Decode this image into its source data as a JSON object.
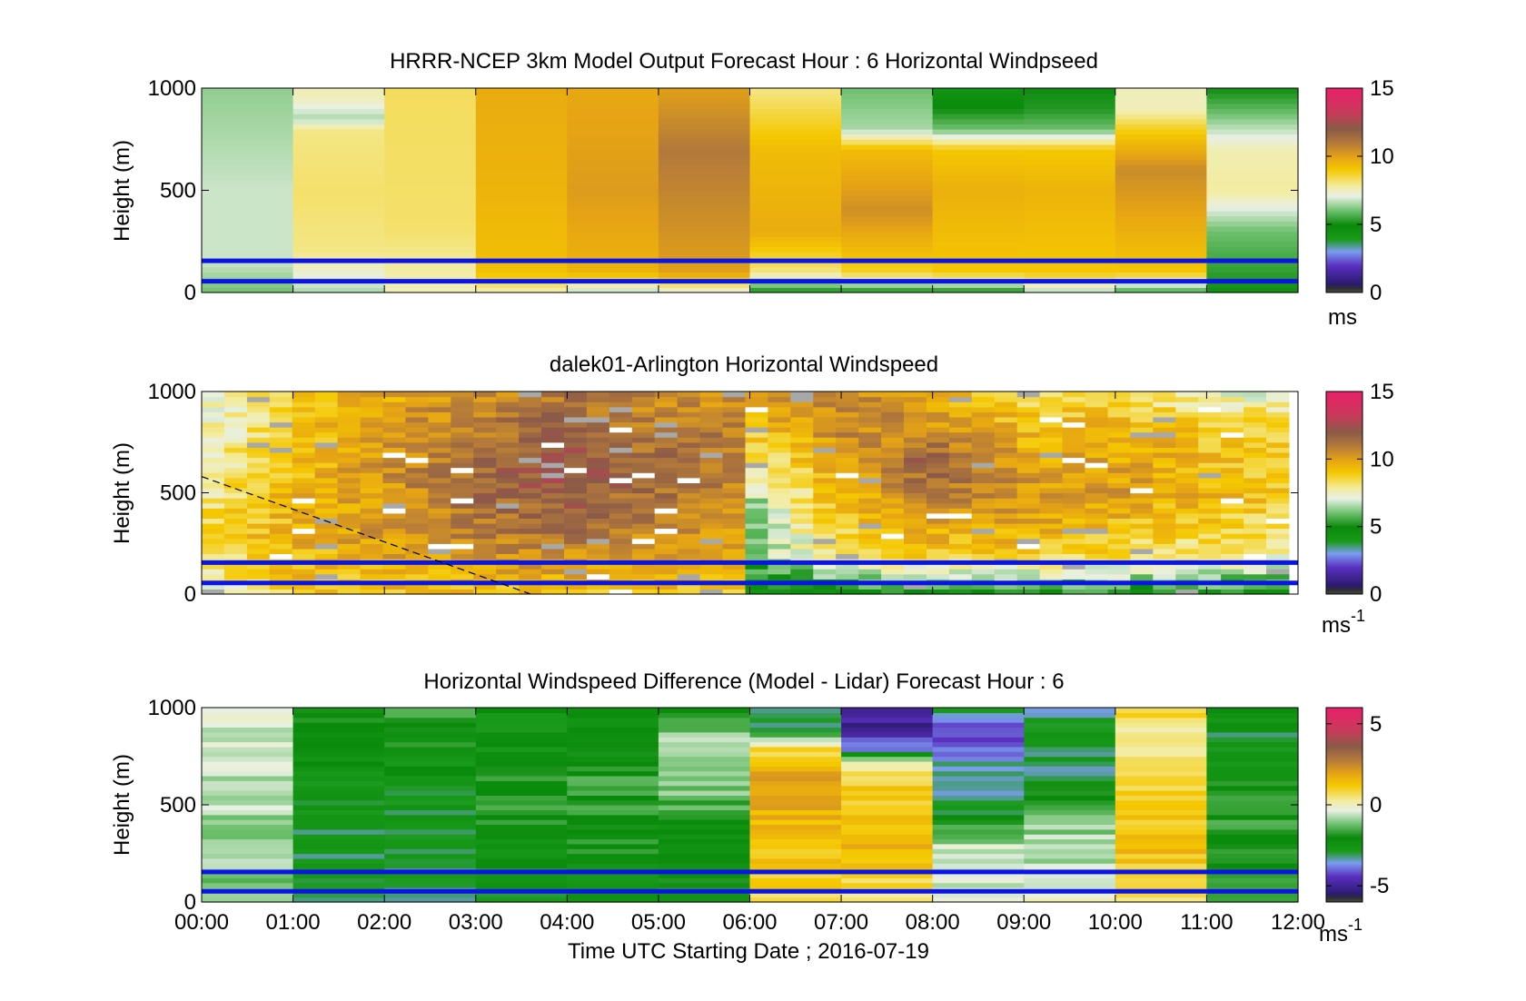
{
  "figure": {
    "xlabel": "Time UTC  Starting Date ; 2016-07-19",
    "x_ticks": [
      "00:00",
      "01:00",
      "02:00",
      "03:00",
      "04:00",
      "05:00",
      "06:00",
      "07:00",
      "08:00",
      "09:00",
      "10:00",
      "11:00",
      "12:00"
    ]
  },
  "chart_data": [
    {
      "type": "heatmap",
      "title": "HRRR-NCEP 3km Model Output   Forecast Hour : 6 Horizontal Windpseed",
      "ylabel": "Height (m)",
      "xlim": [
        0,
        12
      ],
      "ylim": [
        0,
        1000
      ],
      "y_ticks": [
        "0",
        "500",
        "1000"
      ],
      "colorbar": {
        "ticks": [
          "0",
          "5",
          "10",
          "15"
        ],
        "range": [
          0,
          15
        ],
        "unit": "ms"
      },
      "columns": [
        {
          "t": [
            0,
            1
          ],
          "speed_by_height": [
            [
              0,
              6
            ],
            [
              150,
              6.8
            ],
            [
              500,
              6.8
            ],
            [
              1000,
              6.3
            ]
          ]
        },
        {
          "t": [
            1,
            2
          ],
          "speed_by_height": [
            [
              0,
              6.5
            ],
            [
              200,
              8
            ],
            [
              500,
              8.2
            ],
            [
              800,
              8
            ],
            [
              850,
              6.5
            ],
            [
              950,
              7.5
            ],
            [
              1000,
              7.5
            ]
          ]
        },
        {
          "t": [
            2,
            3
          ],
          "speed_by_height": [
            [
              0,
              7.5
            ],
            [
              300,
              8.2
            ],
            [
              1000,
              8.3
            ]
          ]
        },
        {
          "t": [
            3,
            4
          ],
          "speed_by_height": [
            [
              0,
              7.5
            ],
            [
              100,
              9.2
            ],
            [
              500,
              9.5
            ],
            [
              1000,
              9.7
            ]
          ]
        },
        {
          "t": [
            4,
            5
          ],
          "speed_by_height": [
            [
              0,
              6.5
            ],
            [
              100,
              9.5
            ],
            [
              500,
              10.1
            ],
            [
              1000,
              9.8
            ]
          ]
        },
        {
          "t": [
            5,
            6
          ],
          "speed_by_height": [
            [
              0,
              7
            ],
            [
              100,
              10
            ],
            [
              700,
              11
            ],
            [
              1000,
              10
            ]
          ]
        },
        {
          "t": [
            6,
            7
          ],
          "speed_by_height": [
            [
              0,
              5
            ],
            [
              100,
              8
            ],
            [
              300,
              9.7
            ],
            [
              700,
              9.3
            ],
            [
              1000,
              8
            ]
          ]
        },
        {
          "t": [
            7,
            8
          ],
          "speed_by_height": [
            [
              0,
              5
            ],
            [
              100,
              8.7
            ],
            [
              400,
              10.4
            ],
            [
              700,
              9.3
            ],
            [
              800,
              6.5
            ],
            [
              1000,
              6
            ]
          ]
        },
        {
          "t": [
            8,
            9
          ],
          "speed_by_height": [
            [
              0,
              5
            ],
            [
              100,
              9
            ],
            [
              500,
              9.6
            ],
            [
              700,
              9
            ],
            [
              800,
              6
            ],
            [
              900,
              5
            ],
            [
              1000,
              4.3
            ]
          ]
        },
        {
          "t": [
            9,
            10
          ],
          "speed_by_height": [
            [
              0,
              6.5
            ],
            [
              100,
              9
            ],
            [
              500,
              9.5
            ],
            [
              700,
              9
            ],
            [
              800,
              6
            ],
            [
              900,
              5.2
            ],
            [
              1000,
              5
            ]
          ]
        },
        {
          "t": [
            10,
            11
          ],
          "speed_by_height": [
            [
              0,
              5.5
            ],
            [
              100,
              9
            ],
            [
              600,
              10.5
            ],
            [
              800,
              8.8
            ],
            [
              900,
              7.5
            ],
            [
              1000,
              7.5
            ]
          ]
        },
        {
          "t": [
            11,
            12
          ],
          "speed_by_height": [
            [
              0,
              5
            ],
            [
              300,
              6
            ],
            [
              500,
              7.8
            ],
            [
              700,
              7.6
            ],
            [
              900,
              5.8
            ],
            [
              1000,
              5
            ]
          ]
        }
      ],
      "reference_lines_height": [
        55,
        155
      ]
    },
    {
      "type": "heatmap",
      "title": "dalek01-Arlington  Horizontal Windspeed",
      "ylabel": "Height (m)",
      "xlim": [
        0,
        12
      ],
      "ylim": [
        0,
        1000
      ],
      "y_ticks": [
        "0",
        "500",
        "1000"
      ],
      "colorbar": {
        "ticks": [
          "0",
          "5",
          "10",
          "15"
        ],
        "range": [
          0,
          15
        ],
        "unit": "ms",
        "unit_exponent": "-1"
      },
      "speed_profiles": [
        {
          "t": 0,
          "speed_by_height": [
            [
              0,
              7
            ],
            [
              300,
              8.5
            ],
            [
              600,
              7.5
            ],
            [
              1000,
              7
            ]
          ]
        },
        {
          "t": 1,
          "speed_by_height": [
            [
              0,
              9
            ],
            [
              300,
              9.5
            ],
            [
              600,
              9.3
            ],
            [
              1000,
              8.7
            ]
          ]
        },
        {
          "t": 2,
          "speed_by_height": [
            [
              0,
              9
            ],
            [
              300,
              10.2
            ],
            [
              600,
              10.2
            ],
            [
              1000,
              9.7
            ]
          ]
        },
        {
          "t": 3,
          "speed_by_height": [
            [
              0,
              9
            ],
            [
              300,
              11
            ],
            [
              600,
              11.5
            ],
            [
              1000,
              10.5
            ]
          ]
        },
        {
          "t": 4,
          "speed_by_height": [
            [
              0,
              9
            ],
            [
              300,
              11.2
            ],
            [
              600,
              12.3
            ],
            [
              1000,
              11
            ]
          ]
        },
        {
          "t": 5,
          "speed_by_height": [
            [
              0,
              9
            ],
            [
              300,
              10.5
            ],
            [
              600,
              11.5
            ],
            [
              1000,
              10.5
            ]
          ]
        },
        {
          "t": 5.9,
          "speed_by_height": [
            [
              0,
              9
            ],
            [
              300,
              10
            ],
            [
              600,
              11
            ],
            [
              1000,
              10.5
            ]
          ]
        },
        {
          "t": 6,
          "speed_by_height": [
            [
              0,
              4
            ],
            [
              200,
              6
            ],
            [
              500,
              6.5
            ],
            [
              800,
              9
            ],
            [
              1000,
              10.5
            ]
          ]
        },
        {
          "t": 7,
          "speed_by_height": [
            [
              0,
              5
            ],
            [
              200,
              8
            ],
            [
              500,
              9.5
            ],
            [
              800,
              10.5
            ],
            [
              1000,
              11
            ]
          ]
        },
        {
          "t": 8,
          "speed_by_height": [
            [
              0,
              5
            ],
            [
              200,
              9
            ],
            [
              500,
              11
            ],
            [
              650,
              12
            ],
            [
              800,
              10.5
            ],
            [
              1000,
              9.5
            ]
          ]
        },
        {
          "t": 9,
          "speed_by_height": [
            [
              0,
              5
            ],
            [
              200,
              9
            ],
            [
              500,
              10.3
            ],
            [
              800,
              9.5
            ],
            [
              1000,
              8.5
            ]
          ]
        },
        {
          "t": 10,
          "speed_by_height": [
            [
              0,
              5
            ],
            [
              200,
              8.5
            ],
            [
              500,
              10
            ],
            [
              800,
              9.7
            ],
            [
              1000,
              8
            ]
          ]
        },
        {
          "t": 11,
          "speed_by_height": [
            [
              0,
              5
            ],
            [
              200,
              8
            ],
            [
              500,
              9.5
            ],
            [
              800,
              9
            ],
            [
              1000,
              7.5
            ]
          ]
        },
        {
          "t": 12,
          "speed_by_height": [
            [
              0,
              5
            ],
            [
              200,
              7.5
            ],
            [
              500,
              9
            ],
            [
              800,
              8.5
            ],
            [
              1000,
              7
            ]
          ]
        }
      ],
      "data_end_time": 11.9,
      "dashed_line": {
        "from": [
          0,
          580
        ],
        "to": [
          3.6,
          0
        ]
      },
      "reference_lines_height": [
        55,
        155
      ]
    },
    {
      "type": "heatmap",
      "title": "Horizontal Windspeed Difference (Model - Lidar) Forecast Hour : 6",
      "ylabel": "Height (m)",
      "xlim": [
        0,
        12
      ],
      "ylim": [
        0,
        1000
      ],
      "y_ticks": [
        "0",
        "500",
        "1000"
      ],
      "colorbar": {
        "ticks": [
          "-5",
          "0",
          "5"
        ],
        "range": [
          -6,
          6
        ],
        "unit": "ms",
        "unit_exponent": "-1"
      },
      "columns": [
        {
          "t": [
            0,
            1
          ],
          "diff_by_height": [
            [
              0,
              -1.2
            ],
            [
              400,
              -0.8
            ],
            [
              1000,
              -0.6
            ]
          ]
        },
        {
          "t": [
            1,
            2
          ],
          "diff_by_height": [
            [
              0,
              -3
            ],
            [
              300,
              -3
            ],
            [
              700,
              -2.3
            ],
            [
              1000,
              -1.7
            ]
          ]
        },
        {
          "t": [
            2,
            3
          ],
          "diff_by_height": [
            [
              0,
              -3
            ],
            [
              300,
              -3
            ],
            [
              700,
              -2.5
            ],
            [
              1000,
              -1.5
            ]
          ]
        },
        {
          "t": [
            3,
            4
          ],
          "diff_by_height": [
            [
              0,
              -3
            ],
            [
              250,
              -2.5
            ],
            [
              500,
              -1.6
            ],
            [
              800,
              -2.5
            ],
            [
              1000,
              -2.5
            ]
          ]
        },
        {
          "t": [
            4,
            5
          ],
          "diff_by_height": [
            [
              0,
              -2.6
            ],
            [
              300,
              -2
            ],
            [
              600,
              -1.6
            ],
            [
              800,
              -2
            ],
            [
              1000,
              -2.6
            ]
          ]
        },
        {
          "t": [
            5,
            6
          ],
          "diff_by_height": [
            [
              0,
              -2
            ],
            [
              300,
              -2.5
            ],
            [
              600,
              -1
            ],
            [
              800,
              -0.7
            ],
            [
              1000,
              -2
            ]
          ]
        },
        {
          "t": [
            6,
            7
          ],
          "diff_by_height": [
            [
              0,
              0.8
            ],
            [
              500,
              1.8
            ],
            [
              650,
              2
            ],
            [
              800,
              0.6
            ],
            [
              900,
              -3
            ],
            [
              1000,
              -3.5
            ]
          ]
        },
        {
          "t": [
            7,
            8
          ],
          "diff_by_height": [
            [
              0,
              0.5
            ],
            [
              300,
              1.5
            ],
            [
              550,
              1.2
            ],
            [
              700,
              0.5
            ],
            [
              780,
              -3.5
            ],
            [
              860,
              -4.8
            ],
            [
              1000,
              -5
            ]
          ]
        },
        {
          "t": [
            8,
            9
          ],
          "diff_by_height": [
            [
              0,
              -0.5
            ],
            [
              300,
              -0.7
            ],
            [
              500,
              -3.2
            ],
            [
              750,
              -3.5
            ],
            [
              850,
              -4.2
            ],
            [
              950,
              -4
            ],
            [
              1000,
              -2.8
            ]
          ]
        },
        {
          "t": [
            9,
            10
          ],
          "diff_by_height": [
            [
              0,
              -0.3
            ],
            [
              400,
              -1
            ],
            [
              700,
              -3.2
            ],
            [
              900,
              -2.5
            ],
            [
              1000,
              -3.5
            ]
          ]
        },
        {
          "t": [
            10,
            11
          ],
          "diff_by_height": [
            [
              0,
              0.5
            ],
            [
              300,
              1.5
            ],
            [
              600,
              0.8
            ],
            [
              850,
              0
            ],
            [
              1000,
              1
            ]
          ]
        },
        {
          "t": [
            11,
            12
          ],
          "diff_by_height": [
            [
              0,
              -2
            ],
            [
              400,
              -1.6
            ],
            [
              600,
              -2
            ],
            [
              850,
              -3
            ],
            [
              1000,
              -2
            ]
          ]
        }
      ],
      "reference_lines_height": [
        55,
        155
      ]
    }
  ],
  "colormap": {
    "stops": [
      [
        0,
        "#4a4a4a"
      ],
      [
        0.02,
        "#303030"
      ],
      [
        0.04,
        "#2a1a6e"
      ],
      [
        0.13,
        "#5a2fbf"
      ],
      [
        0.2,
        "#7b9cf0"
      ],
      [
        0.26,
        "#1a9a1a"
      ],
      [
        0.33,
        "#0a8a0a"
      ],
      [
        0.4,
        "#6ec06e"
      ],
      [
        0.47,
        "#e8f0e4"
      ],
      [
        0.52,
        "#f3eca0"
      ],
      [
        0.6,
        "#f5c800"
      ],
      [
        0.66,
        "#e6a414"
      ],
      [
        0.73,
        "#b47a3a"
      ],
      [
        0.8,
        "#8b5a48"
      ],
      [
        0.88,
        "#c83a5a"
      ],
      [
        1,
        "#e8206a"
      ]
    ]
  }
}
